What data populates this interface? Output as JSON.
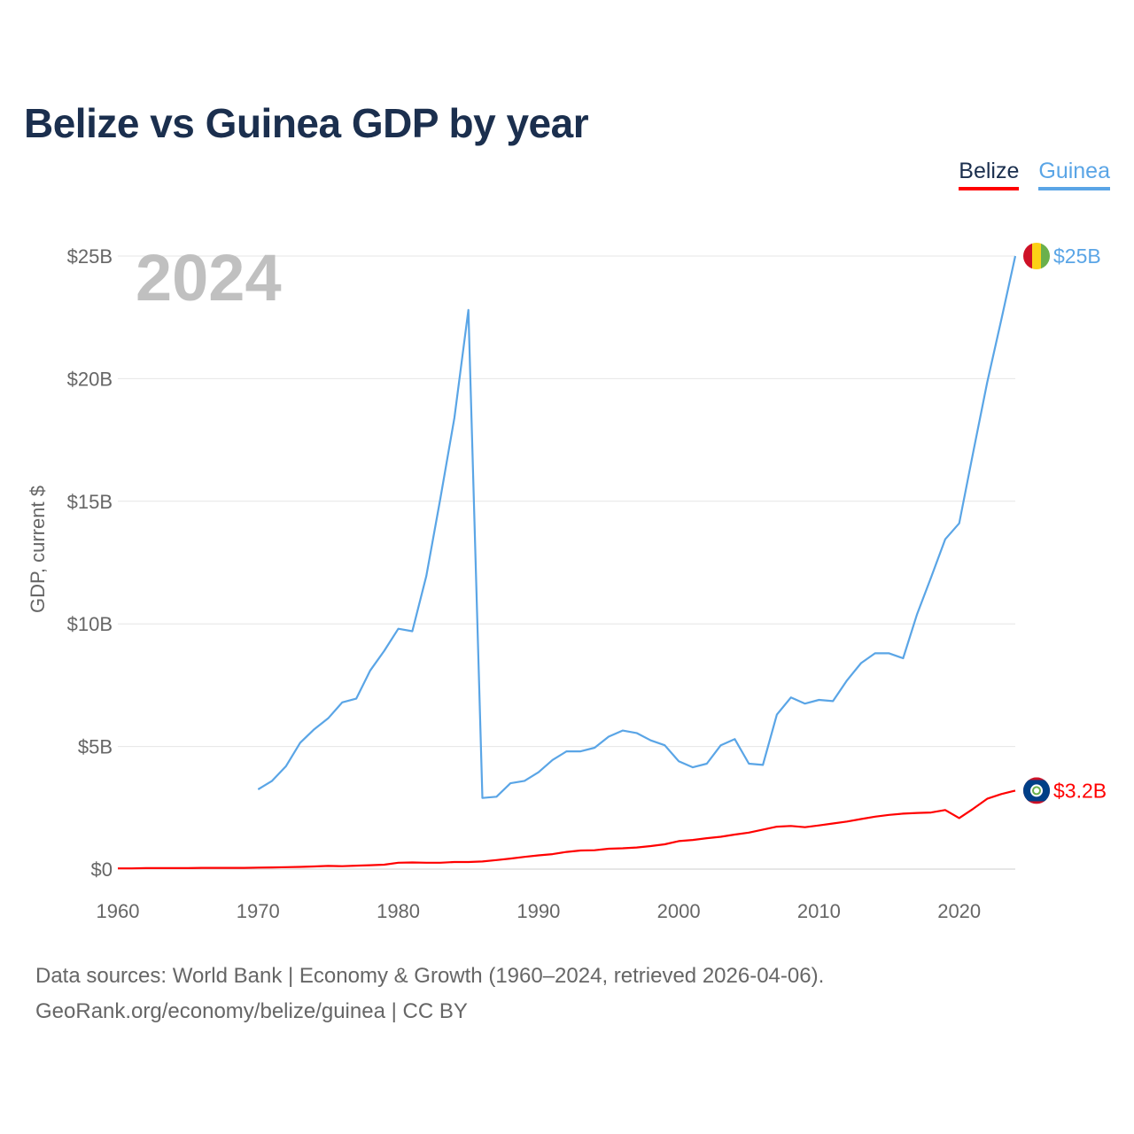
{
  "title": "Belize vs Guinea GDP by year",
  "legend": [
    {
      "label": "Belize",
      "color": "#ff0000"
    },
    {
      "label": "Guinea",
      "color": "#5aa5e6"
    }
  ],
  "source_line1": "Data sources: World Bank | Economy & Growth (1960–2024, retrieved 2026-04-06).",
  "source_line2": "GeoRank.org/economy/belize/guinea | CC BY",
  "chart_data": {
    "type": "line",
    "title": "Belize vs Guinea GDP by year",
    "xlabel": "",
    "ylabel": "GDP, current $",
    "current_year": "2024",
    "xlim": [
      1960,
      2024
    ],
    "ylim": [
      0,
      25
    ],
    "x_ticks": [
      1960,
      1970,
      1980,
      1990,
      2000,
      2010,
      2020
    ],
    "y_ticks": [
      0,
      5,
      10,
      15,
      20,
      25
    ],
    "y_tick_labels": [
      "$0",
      "$5B",
      "$10B",
      "$15B",
      "$20B",
      "$25B"
    ],
    "grid": true,
    "legend_position": "top-right",
    "series": [
      {
        "name": "Guinea",
        "color": "#5aa5e6",
        "end_label": "$25B",
        "flag": "guinea-flag",
        "x": [
          1970,
          1971,
          1972,
          1973,
          1974,
          1975,
          1976,
          1977,
          1978,
          1979,
          1980,
          1981,
          1982,
          1983,
          1984,
          1985,
          1986,
          1987,
          1988,
          1989,
          1990,
          1991,
          1992,
          1993,
          1994,
          1995,
          1996,
          1997,
          1998,
          1999,
          2000,
          2001,
          2002,
          2003,
          2004,
          2005,
          2006,
          2007,
          2008,
          2009,
          2010,
          2011,
          2012,
          2013,
          2014,
          2015,
          2016,
          2017,
          2018,
          2019,
          2020,
          2021,
          2022,
          2023,
          2024
        ],
        "values": [
          3.25,
          3.6,
          4.2,
          5.15,
          5.7,
          6.15,
          6.8,
          6.95,
          8.1,
          8.9,
          9.8,
          9.7,
          11.95,
          15.1,
          18.4,
          22.8,
          2.9,
          2.95,
          3.5,
          3.6,
          3.95,
          4.45,
          4.8,
          4.8,
          4.95,
          5.4,
          5.65,
          5.55,
          5.25,
          5.05,
          4.4,
          4.15,
          4.3,
          5.05,
          5.3,
          4.3,
          4.25,
          6.3,
          7.0,
          6.75,
          6.9,
          6.85,
          7.7,
          8.4,
          8.8,
          8.8,
          8.6,
          10.4,
          11.9,
          13.45,
          14.1,
          17.0,
          19.85,
          22.4,
          25.0
        ]
      },
      {
        "name": "Belize",
        "color": "#ff0000",
        "end_label": "$3.2B",
        "flag": "belize-flag",
        "x": [
          1960,
          1961,
          1962,
          1963,
          1964,
          1965,
          1966,
          1967,
          1968,
          1969,
          1970,
          1971,
          1972,
          1973,
          1974,
          1975,
          1976,
          1977,
          1978,
          1979,
          1980,
          1981,
          1982,
          1983,
          1984,
          1985,
          1986,
          1987,
          1988,
          1989,
          1990,
          1991,
          1992,
          1993,
          1994,
          1995,
          1996,
          1997,
          1998,
          1999,
          2000,
          2001,
          2002,
          2003,
          2004,
          2005,
          2006,
          2007,
          2008,
          2009,
          2010,
          2011,
          2012,
          2013,
          2014,
          2015,
          2016,
          2017,
          2018,
          2019,
          2020,
          2021,
          2022,
          2023,
          2024
        ],
        "values": [
          0.03,
          0.03,
          0.04,
          0.04,
          0.04,
          0.04,
          0.05,
          0.05,
          0.05,
          0.05,
          0.06,
          0.07,
          0.08,
          0.09,
          0.11,
          0.13,
          0.12,
          0.14,
          0.16,
          0.18,
          0.26,
          0.27,
          0.26,
          0.26,
          0.29,
          0.29,
          0.31,
          0.37,
          0.43,
          0.5,
          0.56,
          0.61,
          0.7,
          0.76,
          0.77,
          0.83,
          0.85,
          0.88,
          0.94,
          1.01,
          1.14,
          1.19,
          1.26,
          1.32,
          1.41,
          1.49,
          1.61,
          1.73,
          1.76,
          1.71,
          1.78,
          1.86,
          1.94,
          2.04,
          2.14,
          2.21,
          2.26,
          2.29,
          2.31,
          2.41,
          2.08,
          2.46,
          2.87,
          3.06,
          3.2
        ]
      }
    ]
  }
}
